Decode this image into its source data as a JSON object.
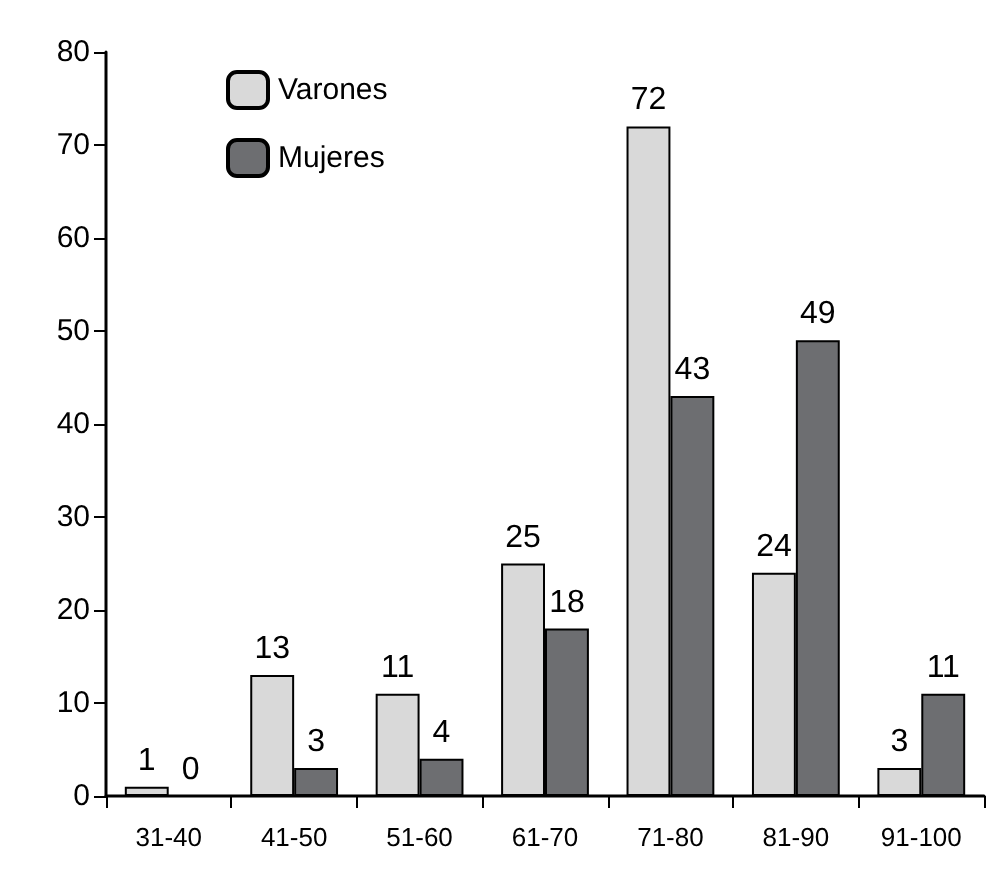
{
  "chart_data": {
    "type": "bar",
    "categories": [
      "31-40",
      "41-50",
      "51-60",
      "61-70",
      "71-80",
      "81-90",
      "91-100"
    ],
    "series": [
      {
        "name": "Varones",
        "color": "#d9d9d9",
        "values": [
          1,
          13,
          11,
          25,
          72,
          24,
          3
        ]
      },
      {
        "name": "Mujeres",
        "color": "#6d6e71",
        "values": [
          0,
          3,
          4,
          18,
          43,
          49,
          11
        ]
      }
    ],
    "ylim": [
      0,
      80
    ],
    "yticks": [
      0,
      10,
      20,
      30,
      40,
      50,
      60,
      70,
      80
    ],
    "grid": false,
    "legend": "top left",
    "data_labels": true
  }
}
